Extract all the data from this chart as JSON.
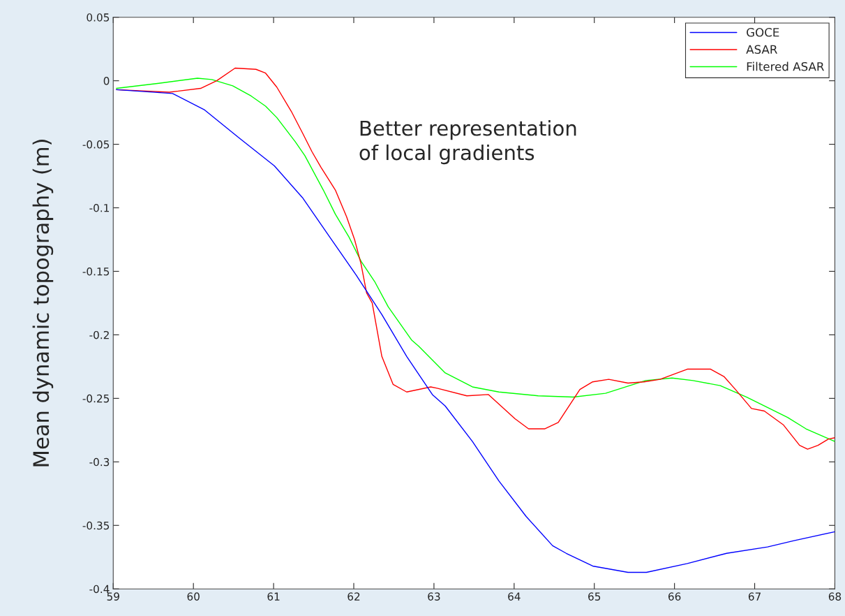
{
  "chart_data": {
    "type": "line",
    "ylabel": "Mean dynamic topography (m)",
    "annotations": [
      "Better representation\nof local gradients"
    ],
    "series": [
      {
        "name": "GOCE",
        "color": "#0000ff",
        "x": [
          59.04,
          59.74,
          60.14,
          60.57,
          61.01,
          61.36,
          61.7,
          62.03,
          62.35,
          62.66,
          62.98,
          63.14,
          63.48,
          63.81,
          64.15,
          64.48,
          64.65,
          64.98,
          65.42,
          65.65,
          66.16,
          66.65,
          67.16,
          67.49,
          68.0
        ],
        "values": [
          -0.007,
          -0.01,
          -0.023,
          -0.045,
          -0.067,
          -0.092,
          -0.123,
          -0.153,
          -0.184,
          -0.217,
          -0.247,
          -0.256,
          -0.284,
          -0.315,
          -0.343,
          -0.366,
          -0.372,
          -0.382,
          -0.387,
          -0.387,
          -0.38,
          -0.372,
          -0.367,
          -0.362,
          -0.355
        ]
      },
      {
        "name": "ASAR",
        "color": "#ff0000",
        "x": [
          59.04,
          59.7,
          60.09,
          60.29,
          60.52,
          60.78,
          60.9,
          61.04,
          61.22,
          61.36,
          61.48,
          61.59,
          61.77,
          61.91,
          62.01,
          62.09,
          62.16,
          62.23,
          62.35,
          62.49,
          62.66,
          62.96,
          63.04,
          63.41,
          63.68,
          64.01,
          64.18,
          64.38,
          64.55,
          64.82,
          64.98,
          65.18,
          65.42,
          65.62,
          65.82,
          66.16,
          66.45,
          66.62,
          66.76,
          66.96,
          67.12,
          67.36,
          67.56,
          67.66,
          67.79,
          67.92,
          68.0
        ],
        "values": [
          -0.007,
          -0.009,
          -0.006,
          0.0,
          0.01,
          0.009,
          0.006,
          -0.005,
          -0.024,
          -0.041,
          -0.056,
          -0.068,
          -0.086,
          -0.107,
          -0.125,
          -0.144,
          -0.167,
          -0.175,
          -0.217,
          -0.239,
          -0.245,
          -0.241,
          -0.242,
          -0.248,
          -0.247,
          -0.266,
          -0.274,
          -0.274,
          -0.269,
          -0.243,
          -0.237,
          -0.235,
          -0.238,
          -0.237,
          -0.235,
          -0.227,
          -0.227,
          -0.233,
          -0.243,
          -0.258,
          -0.26,
          -0.271,
          -0.287,
          -0.29,
          -0.287,
          -0.282,
          -0.281
        ]
      },
      {
        "name": "Filtered ASAR",
        "color": "#00ff00",
        "x": [
          59.04,
          59.57,
          60.05,
          60.23,
          60.49,
          60.72,
          60.9,
          61.04,
          61.27,
          61.39,
          61.62,
          61.77,
          61.94,
          62.09,
          62.26,
          62.43,
          62.72,
          62.81,
          63.14,
          63.48,
          63.81,
          64.3,
          64.74,
          65.14,
          65.64,
          65.97,
          66.23,
          66.57,
          66.9,
          67.41,
          67.64,
          68.0
        ],
        "values": [
          -0.006,
          -0.002,
          0.002,
          0.001,
          -0.004,
          -0.012,
          -0.02,
          -0.029,
          -0.048,
          -0.059,
          -0.086,
          -0.105,
          -0.123,
          -0.142,
          -0.158,
          -0.178,
          -0.204,
          -0.209,
          -0.23,
          -0.241,
          -0.245,
          -0.248,
          -0.249,
          -0.246,
          -0.236,
          -0.234,
          -0.236,
          -0.24,
          -0.249,
          -0.265,
          -0.274,
          -0.284
        ]
      }
    ],
    "xlim": [
      59,
      68
    ],
    "xticks": [
      59,
      60,
      61,
      62,
      63,
      64,
      65,
      66,
      67,
      68
    ],
    "ylim": [
      -0.4,
      0.05
    ],
    "yticks": [
      -0.4,
      -0.35,
      -0.3,
      -0.25,
      -0.2,
      -0.15,
      -0.1,
      -0.05,
      0,
      0.05
    ],
    "grid": false,
    "legend": "top right"
  }
}
